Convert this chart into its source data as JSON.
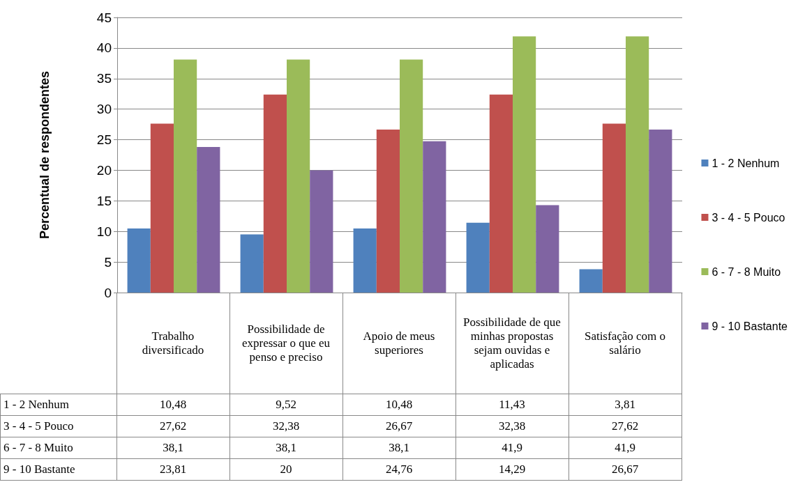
{
  "chart_data": {
    "type": "bar",
    "ylabel": "Percentual de respondentes",
    "categories": [
      "Trabalho diversificado",
      "Possibilidade de expressar o que eu penso e preciso",
      "Apoio de meus superiores",
      "Possibilidade de que minhas propostas sejam ouvidas e aplicadas",
      "Satisfação com o salário"
    ],
    "series": [
      {
        "name": "1 - 2 Nenhum",
        "color": "#4f81bd",
        "values": [
          10.48,
          9.52,
          10.48,
          11.43,
          3.81
        ],
        "value_labels": [
          "10,48",
          "9,52",
          "10,48",
          "11,43",
          "3,81"
        ]
      },
      {
        "name": "3 - 4 - 5 Pouco",
        "color": "#c0504d",
        "values": [
          27.62,
          32.38,
          26.67,
          32.38,
          27.62
        ],
        "value_labels": [
          "27,62",
          "32,38",
          "26,67",
          "32,38",
          "27,62"
        ]
      },
      {
        "name": "6 - 7 - 8 Muito",
        "color": "#9bbb59",
        "values": [
          38.1,
          38.1,
          38.1,
          41.9,
          41.9
        ],
        "value_labels": [
          "38,1",
          "38,1",
          "38,1",
          "41,9",
          "41,9"
        ]
      },
      {
        "name": "9 - 10 Bastante",
        "color": "#8064a2",
        "values": [
          23.81,
          20,
          24.76,
          14.29,
          26.67
        ],
        "value_labels": [
          "23,81",
          "20",
          "24,76",
          "14,29",
          "26,67"
        ]
      }
    ],
    "ylim": [
      0,
      45
    ],
    "yticks": [
      0,
      5,
      10,
      15,
      20,
      25,
      30,
      35,
      40,
      45
    ],
    "grid": "y",
    "legend": "right"
  }
}
